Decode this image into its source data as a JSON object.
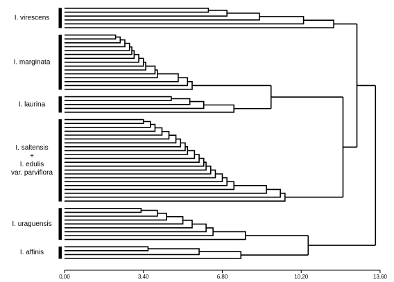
{
  "chart_data": {
    "type": "dendrogram",
    "xlim": [
      0,
      13.6
    ],
    "xticks": [
      {
        "value": 0,
        "label": "0,00"
      },
      {
        "value": 3.4,
        "label": "3,40"
      },
      {
        "value": 6.8,
        "label": "6,80"
      },
      {
        "value": 10.2,
        "label": "10,20"
      },
      {
        "value": 13.6,
        "label": "13,60"
      }
    ],
    "tree": {
      "height": 13.4,
      "children": [
        {
          "height": 12.6,
          "children": [
            {
              "name": [
                "I. virescens"
              ],
              "merges": [
                6.2,
                7.0,
                8.4,
                10.3,
                11.6
              ]
            },
            {
              "height": 12.0,
              "children": [
                {
                  "height": 8.9,
                  "children": [
                    {
                      "name": [
                        "I. marginata"
                      ],
                      "merges": [
                        2.2,
                        2.4,
                        2.6,
                        2.8,
                        2.9,
                        3.0,
                        3.2,
                        3.4,
                        3.5,
                        3.9,
                        4.0,
                        4.9,
                        5.3,
                        5.5
                      ]
                    },
                    {
                      "name": [
                        "I. laurina"
                      ],
                      "merges": [
                        4.6,
                        5.4,
                        6.0,
                        7.3
                      ]
                    }
                  ]
                },
                {
                  "name": [
                    "I. saltensis",
                    "+",
                    "I. edulis",
                    "var. parviflora"
                  ],
                  "merges": [
                    3.4,
                    3.7,
                    3.9,
                    4.2,
                    4.5,
                    4.8,
                    5.0,
                    5.2,
                    5.3,
                    5.6,
                    5.8,
                    6.0,
                    6.1,
                    6.3,
                    6.5,
                    6.8,
                    7.0,
                    7.3,
                    8.7,
                    9.3,
                    9.5
                  ]
                }
              ]
            }
          ]
        },
        {
          "height": 10.5,
          "children": [
            {
              "name": [
                "I. uraguensis"
              ],
              "merges": [
                3.3,
                4.0,
                4.4,
                5.1,
                5.5,
                6.1,
                6.4,
                7.8
              ]
            },
            {
              "name": [
                "I. affinis"
              ],
              "merges": [
                3.6,
                5.8,
                7.6
              ]
            }
          ]
        }
      ]
    }
  }
}
